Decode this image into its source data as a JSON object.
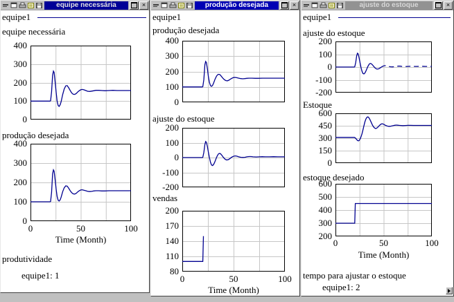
{
  "colors": {
    "desktop": "#c0c0c0",
    "line": "#000090",
    "grid": "#c6c6c6",
    "frame": "#000000",
    "title_styles": {
      "blue": {
        "bg": "#000097",
        "fg": "#e2e2e2"
      },
      "active": {
        "bg": "#0000b4",
        "fg": "#ffffff"
      },
      "gray": {
        "bg": "#929292",
        "fg": "#d8d8d8"
      }
    }
  },
  "titlebar": {
    "close_glyph": "×",
    "icons": [
      "system-menu",
      "restore-window",
      "printer",
      "notes",
      "save"
    ]
  },
  "windows": [
    {
      "title": "equipe necessária",
      "title_style": "blue",
      "legend": {
        "run": "equipe1",
        "line": true
      },
      "charts": [
        {
          "title": "equipe necessária",
          "y_ticks": [
            "400",
            "300",
            "200",
            "100",
            "0"
          ],
          "series": "equipe_necessaria"
        },
        {
          "title": "produção desejada",
          "y_ticks": [
            "400",
            "300",
            "200",
            "100",
            "0"
          ],
          "series": "producao_desejada",
          "x_ticks": [
            "0",
            "50",
            "100"
          ],
          "xlabel": "Time (Month)"
        }
      ],
      "footer": [
        "produtividade",
        "equipe1: 1"
      ]
    },
    {
      "title": "produção desejada",
      "title_style": "active",
      "legend": {
        "run": "equipe1",
        "line": false
      },
      "charts": [
        {
          "title": "produção desejada",
          "y_ticks": [
            "400",
            "300",
            "200",
            "100",
            "0"
          ],
          "series": "producao_desejada"
        },
        {
          "title": "ajuste do estoque",
          "y_ticks": [
            "200",
            "100",
            "0",
            "-100",
            "-200"
          ],
          "series": "ajuste_do_estoque"
        },
        {
          "title": "vendas",
          "y_ticks": [
            "200",
            "170",
            "140",
            "110",
            "80"
          ],
          "series": "vendas",
          "x_ticks": [
            "0",
            "50",
            "100"
          ],
          "xlabel": "Time (Month)"
        }
      ],
      "footer": []
    },
    {
      "title": "ajuste do estoque",
      "title_style": "gray",
      "legend": {
        "run": "equipe1",
        "line": true
      },
      "charts": [
        {
          "title": "ajuste do estoque",
          "y_ticks": [
            "200",
            "100",
            "0",
            "-100",
            "-200"
          ],
          "series": "ajuste_do_estoque_dashed"
        },
        {
          "title": "Estoque",
          "y_ticks": [
            "600",
            "450",
            "300",
            "150",
            "0"
          ],
          "series": "estoque"
        },
        {
          "title": "estoque desejado",
          "y_ticks": [
            "600",
            "500",
            "400",
            "300",
            "200"
          ],
          "series": "estoque_desejado",
          "x_ticks": [
            "0",
            "50",
            "100"
          ],
          "xlabel": "Time (Month)"
        }
      ],
      "footer": [
        "tempo para ajustar o estoque",
        "equipe1: 2"
      ]
    }
  ],
  "chart_data": {
    "type": "line",
    "x_range": [
      0,
      100
    ],
    "x_label": "Time (Month)",
    "run_name": "equipe1",
    "v_gridlines": [
      25,
      50,
      75
    ],
    "series": {
      "equipe_necessaria": {
        "y_range": [
          0,
          400
        ],
        "points": [
          [
            0,
            100
          ],
          [
            19.5,
            100
          ],
          [
            20,
            102
          ],
          [
            21,
            150
          ],
          [
            22,
            240
          ],
          [
            22.8,
            262
          ],
          [
            23.5,
            255
          ],
          [
            24.5,
            205
          ],
          [
            25.5,
            148
          ],
          [
            26.5,
            100
          ],
          [
            27.5,
            76
          ],
          [
            28.5,
            71
          ],
          [
            29.5,
            80
          ],
          [
            30.5,
            97
          ],
          [
            32,
            135
          ],
          [
            33.5,
            165
          ],
          [
            35,
            182
          ],
          [
            36.5,
            184
          ],
          [
            38,
            172
          ],
          [
            39.5,
            157
          ],
          [
            41,
            144
          ],
          [
            42.5,
            137
          ],
          [
            44,
            136
          ],
          [
            45.5,
            141
          ],
          [
            47,
            149
          ],
          [
            48.5,
            156
          ],
          [
            50,
            161
          ],
          [
            51.5,
            163
          ],
          [
            53,
            161
          ],
          [
            55,
            157
          ],
          [
            57,
            153
          ],
          [
            59,
            152
          ],
          [
            61,
            154
          ],
          [
            63,
            156
          ],
          [
            65,
            158
          ],
          [
            68,
            158
          ],
          [
            71,
            157
          ],
          [
            74,
            156
          ],
          [
            78,
            157
          ],
          [
            82,
            158
          ],
          [
            86,
            157
          ],
          [
            90,
            157
          ],
          [
            95,
            157
          ],
          [
            100,
            157
          ]
        ]
      },
      "producao_desejada": {
        "y_range": [
          0,
          400
        ],
        "points": [
          [
            0,
            100
          ],
          [
            19.5,
            100
          ],
          [
            20,
            102
          ],
          [
            21,
            148
          ],
          [
            22,
            245
          ],
          [
            22.8,
            265
          ],
          [
            23.5,
            258
          ],
          [
            24.5,
            215
          ],
          [
            25.5,
            165
          ],
          [
            26.5,
            128
          ],
          [
            27.5,
            108
          ],
          [
            28.5,
            104
          ],
          [
            29.5,
            110
          ],
          [
            30.5,
            124
          ],
          [
            32,
            152
          ],
          [
            33.5,
            172
          ],
          [
            35,
            182
          ],
          [
            36.5,
            181
          ],
          [
            38,
            170
          ],
          [
            39.5,
            157
          ],
          [
            41,
            147
          ],
          [
            42.5,
            141
          ],
          [
            44,
            140
          ],
          [
            45.5,
            144
          ],
          [
            47,
            151
          ],
          [
            48.5,
            157
          ],
          [
            50,
            161
          ],
          [
            51.5,
            162
          ],
          [
            53,
            160
          ],
          [
            55,
            157
          ],
          [
            57,
            154
          ],
          [
            59,
            153
          ],
          [
            61,
            154
          ],
          [
            63,
            156
          ],
          [
            65,
            157
          ],
          [
            68,
            157
          ],
          [
            71,
            156
          ],
          [
            74,
            156
          ],
          [
            78,
            157
          ],
          [
            82,
            157
          ],
          [
            86,
            157
          ],
          [
            90,
            157
          ],
          [
            95,
            157
          ],
          [
            100,
            157
          ]
        ]
      },
      "ajuste_do_estoque": {
        "y_range": [
          -200,
          200
        ],
        "points": [
          [
            0,
            0
          ],
          [
            19.5,
            0
          ],
          [
            20,
            2
          ],
          [
            21,
            35
          ],
          [
            22,
            88
          ],
          [
            22.8,
            108
          ],
          [
            23.5,
            103
          ],
          [
            24.5,
            72
          ],
          [
            25.5,
            35
          ],
          [
            26.5,
            -2
          ],
          [
            27.5,
            -32
          ],
          [
            28.5,
            -50
          ],
          [
            29.5,
            -54
          ],
          [
            30.5,
            -47
          ],
          [
            31.5,
            -33
          ],
          [
            32.5,
            -15
          ],
          [
            33.5,
            3
          ],
          [
            34.5,
            17
          ],
          [
            35.5,
            26
          ],
          [
            36.5,
            28
          ],
          [
            37.5,
            24
          ],
          [
            38.5,
            16
          ],
          [
            40,
            2
          ],
          [
            41.5,
            -10
          ],
          [
            43,
            -16
          ],
          [
            44.5,
            -15
          ],
          [
            46,
            -9
          ],
          [
            47.5,
            -1
          ],
          [
            49,
            6
          ],
          [
            50.5,
            10
          ],
          [
            52,
            11
          ],
          [
            53.5,
            9
          ],
          [
            55,
            5
          ],
          [
            57,
            2
          ],
          [
            59,
            1
          ],
          [
            61,
            2
          ],
          [
            63,
            5
          ],
          [
            65,
            7
          ],
          [
            67,
            7
          ],
          [
            69,
            5
          ],
          [
            72,
            4
          ],
          [
            75,
            5
          ],
          [
            78,
            6
          ],
          [
            81,
            5
          ],
          [
            85,
            5
          ],
          [
            89,
            6
          ],
          [
            93,
            5
          ],
          [
            97,
            5
          ],
          [
            100,
            5
          ]
        ]
      },
      "ajuste_do_estoque_dashed": {
        "y_range": [
          -200,
          200
        ],
        "dash_from": 47,
        "points": [
          [
            0,
            0
          ],
          [
            19.5,
            0
          ],
          [
            20,
            2
          ],
          [
            21,
            35
          ],
          [
            22,
            88
          ],
          [
            22.8,
            108
          ],
          [
            23.5,
            103
          ],
          [
            24.5,
            72
          ],
          [
            25.5,
            35
          ],
          [
            26.5,
            -2
          ],
          [
            27.5,
            -32
          ],
          [
            28.5,
            -50
          ],
          [
            29.5,
            -54
          ],
          [
            30.5,
            -47
          ],
          [
            31.5,
            -33
          ],
          [
            32.5,
            -15
          ],
          [
            33.5,
            3
          ],
          [
            34.5,
            17
          ],
          [
            35.5,
            26
          ],
          [
            36.5,
            28
          ],
          [
            37.5,
            24
          ],
          [
            38.5,
            16
          ],
          [
            40,
            2
          ],
          [
            41.5,
            -10
          ],
          [
            43,
            -16
          ],
          [
            44.5,
            -15
          ],
          [
            46,
            -9
          ],
          [
            47.5,
            -1
          ],
          [
            49,
            6
          ],
          [
            50.5,
            10
          ],
          [
            52,
            11
          ],
          [
            53.5,
            9
          ],
          [
            55,
            5
          ],
          [
            57,
            2
          ],
          [
            59,
            1
          ],
          [
            61,
            2
          ],
          [
            63,
            5
          ],
          [
            65,
            7
          ],
          [
            67,
            7
          ],
          [
            69,
            5
          ],
          [
            72,
            4
          ],
          [
            75,
            5
          ],
          [
            78,
            6
          ],
          [
            81,
            5
          ],
          [
            85,
            5
          ],
          [
            89,
            6
          ],
          [
            93,
            5
          ],
          [
            97,
            5
          ],
          [
            100,
            5
          ]
        ]
      },
      "vendas": {
        "y_range": [
          80,
          200
        ],
        "points": [
          [
            0,
            100
          ],
          [
            20,
            100
          ],
          [
            20.6,
            150
          ]
        ]
      },
      "estoque": {
        "y_range": [
          0,
          600
        ],
        "points": [
          [
            0,
            310
          ],
          [
            19.5,
            310
          ],
          [
            20,
            308
          ],
          [
            21,
            298
          ],
          [
            22,
            284
          ],
          [
            23,
            272
          ],
          [
            23.8,
            268
          ],
          [
            24.5,
            272
          ],
          [
            25.5,
            288
          ],
          [
            26.5,
            315
          ],
          [
            27.5,
            352
          ],
          [
            28.5,
            398
          ],
          [
            29.5,
            448
          ],
          [
            30.5,
            495
          ],
          [
            31.5,
            530
          ],
          [
            32.5,
            551
          ],
          [
            33.3,
            557
          ],
          [
            34,
            555
          ],
          [
            35,
            542
          ],
          [
            36,
            520
          ],
          [
            37,
            494
          ],
          [
            38,
            468
          ],
          [
            39,
            446
          ],
          [
            40,
            430
          ],
          [
            41,
            420
          ],
          [
            41.8,
            417
          ],
          [
            42.5,
            420
          ],
          [
            43.5,
            428
          ],
          [
            44.5,
            440
          ],
          [
            45.5,
            452
          ],
          [
            46.5,
            463
          ],
          [
            47.5,
            471
          ],
          [
            48.3,
            474
          ],
          [
            49,
            473
          ],
          [
            50,
            468
          ],
          [
            51,
            461
          ],
          [
            52.5,
            452
          ],
          [
            54,
            446
          ],
          [
            55.5,
            443
          ],
          [
            57,
            444
          ],
          [
            58.5,
            448
          ],
          [
            60,
            452
          ],
          [
            61.5,
            456
          ],
          [
            63,
            458
          ],
          [
            64.5,
            457
          ],
          [
            66,
            455
          ],
          [
            68,
            453
          ],
          [
            70,
            452
          ],
          [
            72.5,
            453
          ],
          [
            75,
            455
          ],
          [
            78,
            455
          ],
          [
            81,
            454
          ],
          [
            85,
            454
          ],
          [
            90,
            454
          ],
          [
            95,
            454
          ],
          [
            100,
            454
          ]
        ]
      },
      "estoque_desejado": {
        "y_range": [
          200,
          600
        ],
        "points": [
          [
            0,
            300
          ],
          [
            20,
            300
          ],
          [
            20.6,
            450
          ],
          [
            100,
            450
          ]
        ]
      }
    }
  }
}
